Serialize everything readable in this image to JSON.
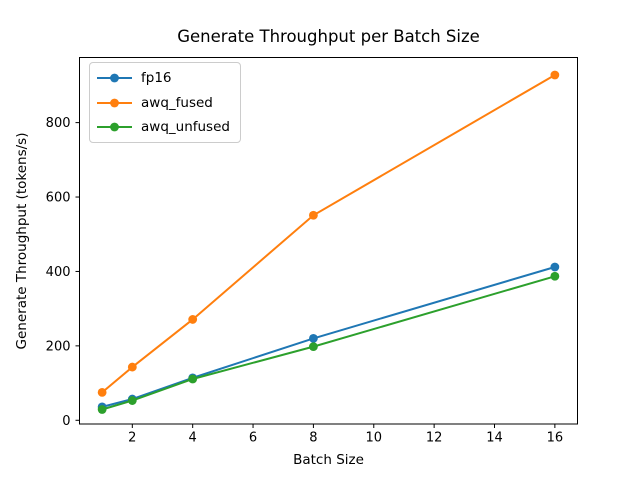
{
  "chart_data": {
    "type": "line",
    "title": "Generate Throughput per Batch Size",
    "xlabel": "Batch Size",
    "ylabel": "Generate Throughput (tokens/s)",
    "x": [
      1,
      2,
      4,
      8,
      16
    ],
    "series": [
      {
        "name": "fp16",
        "color": "#1f77b4",
        "values": [
          36,
          57,
          114,
          220,
          412
        ]
      },
      {
        "name": "awq_fused",
        "color": "#ff7f0e",
        "values": [
          75,
          143,
          271,
          551,
          928
        ]
      },
      {
        "name": "awq_unfused",
        "color": "#2ca02c",
        "values": [
          29,
          53,
          111,
          198,
          387
        ]
      }
    ],
    "xticks": [
      2,
      4,
      6,
      8,
      10,
      12,
      14,
      16
    ],
    "yticks": [
      0,
      200,
      400,
      600,
      800
    ],
    "xlim": [
      0.25,
      16.75
    ],
    "ylim": [
      -10,
      975
    ],
    "grid": false,
    "legend_position": "upper left",
    "marker": "circle",
    "axis_color": "#000000",
    "background": "#ffffff"
  }
}
